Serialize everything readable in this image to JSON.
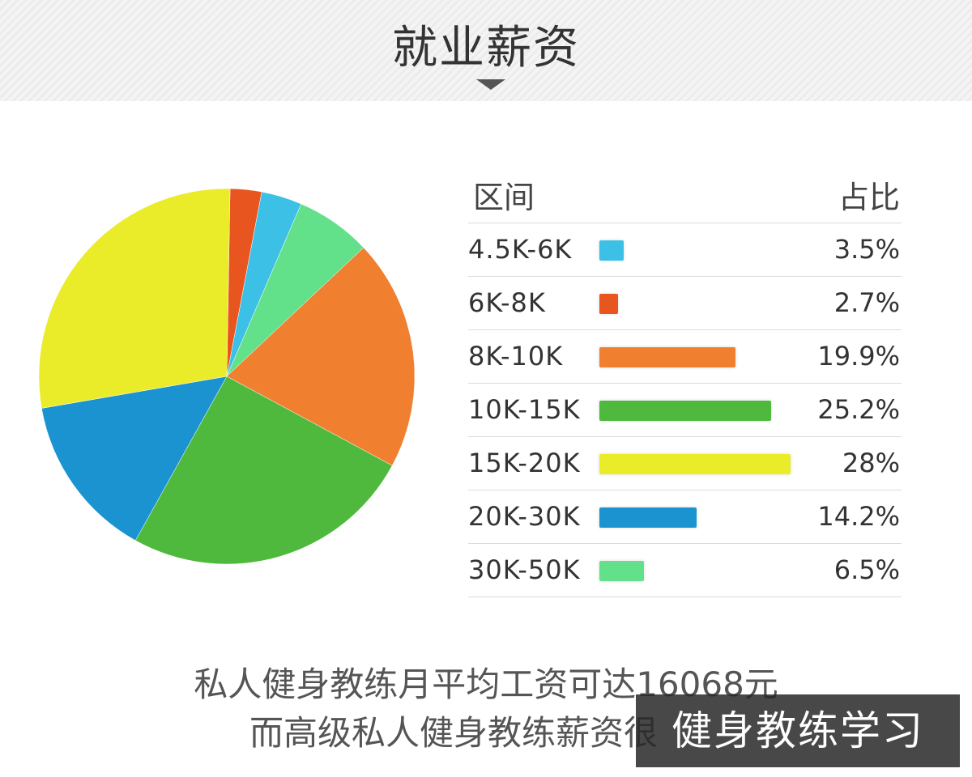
{
  "header": {
    "title": "就业薪资"
  },
  "table": {
    "col_range": "区间",
    "col_share": "占比"
  },
  "chart_data": {
    "type": "pie",
    "categories": [
      "4.5K-6K",
      "6K-8K",
      "8K-10K",
      "10K-15K",
      "15K-20K",
      "20K-30K",
      "30K-50K"
    ],
    "values": [
      3.5,
      2.7,
      19.9,
      25.2,
      28,
      14.2,
      6.5
    ],
    "labels": [
      "3.5%",
      "2.7%",
      "19.9%",
      "25.2%",
      "28%",
      "14.2%",
      "6.5%"
    ],
    "colors": [
      "#3cc0e6",
      "#e8551f",
      "#f07f2f",
      "#4fb93d",
      "#eaec2a",
      "#1a93d0",
      "#63e08a"
    ],
    "pie_order": [
      1,
      0,
      6,
      2,
      3,
      5,
      4
    ]
  },
  "summary": {
    "line1": "私人健身教练月平均工资可达16068元",
    "line2": "而高级私人健身教练薪资很"
  },
  "watermark": "健身教练学习"
}
